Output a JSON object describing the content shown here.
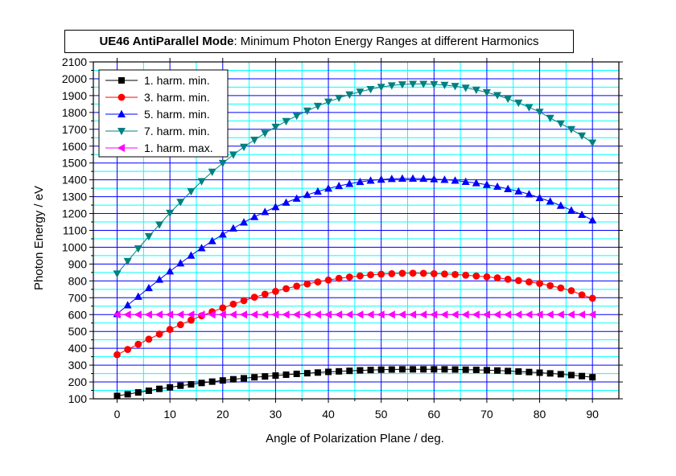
{
  "chart_data": {
    "type": "line",
    "title_bold": "UE46 AntiParallel Mode",
    "title_rest": ": Minimum Photon Energy Ranges at different Harmonics",
    "xlabel": "Angle of Polarization Plane / deg.",
    "ylabel": "Photon Energy / eV",
    "xlim": [
      -4.5,
      95
    ],
    "ylim": [
      100,
      2100
    ],
    "xticks": [
      0,
      10,
      20,
      30,
      40,
      50,
      60,
      70,
      80,
      90
    ],
    "yticks": [
      100,
      200,
      300,
      400,
      500,
      600,
      700,
      800,
      900,
      1000,
      1100,
      1200,
      1300,
      1400,
      1500,
      1600,
      1700,
      1800,
      1900,
      2000,
      2100
    ],
    "grid": true,
    "legend_position": "top-left",
    "x": [
      0,
      2,
      4,
      6,
      8,
      10,
      12,
      14,
      16,
      18,
      20,
      22,
      24,
      26,
      28,
      30,
      32,
      34,
      36,
      38,
      40,
      42,
      44,
      46,
      48,
      50,
      52,
      54,
      56,
      58,
      60,
      62,
      64,
      66,
      68,
      70,
      72,
      74,
      76,
      78,
      80,
      82,
      84,
      86,
      88,
      90
    ],
    "series": [
      {
        "name": "1. harm. min.",
        "color": "#000000",
        "marker": "square",
        "values": [
          117,
          127,
          138,
          148,
          159,
          168,
          178,
          186,
          194,
          202,
          209,
          216,
          222,
          228,
          233,
          238,
          243,
          248,
          252,
          256,
          260,
          263,
          266,
          269,
          271,
          273,
          274,
          275,
          275,
          275,
          275,
          275,
          274,
          273,
          272,
          270,
          268,
          265,
          262,
          259,
          255,
          251,
          246,
          241,
          235,
          228
        ]
      },
      {
        "name": "3. harm. min.",
        "color": "#ff0000",
        "marker": "circle",
        "values": [
          362,
          393,
          424,
          454,
          484,
          512,
          540,
          567,
          593,
          617,
          640,
          662,
          683,
          703,
          721,
          738,
          754,
          769,
          782,
          794,
          805,
          815,
          823,
          830,
          836,
          840,
          843,
          845,
          846,
          845,
          843,
          841,
          838,
          834,
          829,
          824,
          818,
          810,
          802,
          794,
          785,
          772,
          758,
          742,
          717,
          697
        ]
      },
      {
        "name": "5. harm. min.",
        "color": "#0000ff",
        "marker": "triangle-up",
        "values": [
          604,
          656,
          707,
          758,
          808,
          857,
          905,
          951,
          995,
          1037,
          1076,
          1112,
          1148,
          1180,
          1210,
          1239,
          1265,
          1289,
          1311,
          1331,
          1349,
          1364,
          1377,
          1388,
          1396,
          1402,
          1406,
          1408,
          1408,
          1407,
          1404,
          1401,
          1396,
          1389,
          1381,
          1371,
          1360,
          1346,
          1332,
          1315,
          1293,
          1272,
          1247,
          1219,
          1193,
          1160
        ]
      },
      {
        "name": "7. harm. min.",
        "color": "#008080",
        "marker": "triangle-down",
        "values": [
          843,
          917,
          992,
          1064,
          1134,
          1203,
          1268,
          1331,
          1391,
          1447,
          1499,
          1549,
          1595,
          1637,
          1677,
          1714,
          1748,
          1780,
          1810,
          1838,
          1863,
          1886,
          1906,
          1923,
          1938,
          1951,
          1960,
          1966,
          1969,
          1969,
          1967,
          1963,
          1956,
          1946,
          1934,
          1919,
          1902,
          1881,
          1857,
          1830,
          1803,
          1767,
          1734,
          1700,
          1662,
          1620
        ]
      },
      {
        "name": "1. harm. max.",
        "color": "#ff00ff",
        "marker": "triangle-left",
        "values": [
          600,
          600,
          600,
          600,
          600,
          600,
          600,
          600,
          600,
          600,
          600,
          600,
          600,
          600,
          600,
          600,
          600,
          600,
          600,
          600,
          600,
          600,
          600,
          600,
          600,
          600,
          600,
          600,
          600,
          600,
          600,
          600,
          600,
          600,
          600,
          600,
          600,
          600,
          600,
          600,
          600,
          600,
          600,
          600,
          600,
          600
        ]
      }
    ]
  }
}
